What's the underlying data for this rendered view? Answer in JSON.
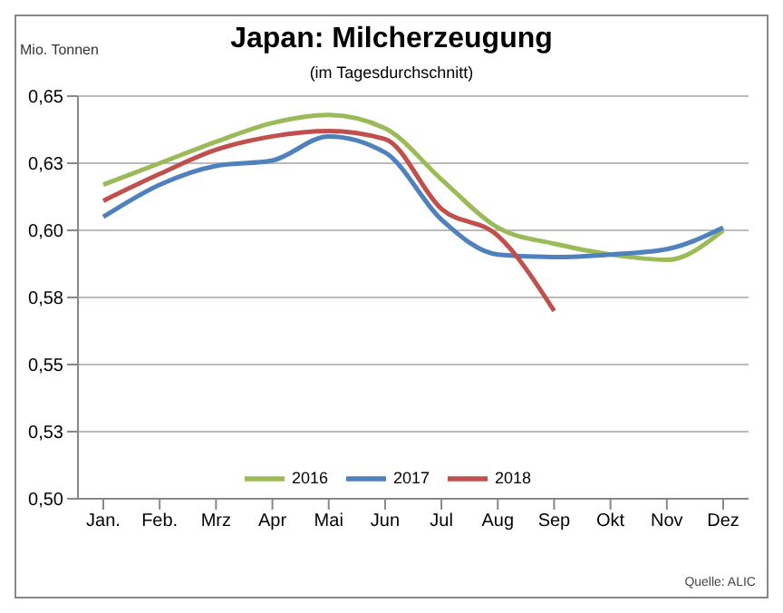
{
  "chart_data": {
    "type": "line",
    "title": "Japan: Milcherzeugung",
    "subtitle": "(im Tagesdurchschnitt)",
    "ylabel": "Mio. Tonnen",
    "categories": [
      "Jan.",
      "Feb.",
      "Mrz",
      "Apr",
      "Mai",
      "Jun",
      "Jul",
      "Aug",
      "Sep",
      "Okt",
      "Nov",
      "Dez"
    ],
    "series": [
      {
        "name": "2016",
        "color": "#9bbb59",
        "values": [
          0.617,
          0.625,
          0.633,
          0.64,
          0.643,
          0.638,
          0.619,
          0.601,
          0.595,
          0.591,
          0.589,
          0.6
        ]
      },
      {
        "name": "2017",
        "color": "#4f81bd",
        "values": [
          0.605,
          0.617,
          0.624,
          0.626,
          0.635,
          0.629,
          0.604,
          0.591,
          0.59,
          0.591,
          0.593,
          0.601
        ]
      },
      {
        "name": "2018",
        "color": "#c0504d",
        "values": [
          0.611,
          0.621,
          0.63,
          0.635,
          0.637,
          0.634,
          0.608,
          0.598,
          0.57,
          null,
          null,
          null
        ]
      }
    ],
    "ylim": [
      0.5,
      0.65
    ],
    "yticks": [
      {
        "value": 0.5,
        "label": "0,50"
      },
      {
        "value": 0.525,
        "label": "0,53"
      },
      {
        "value": 0.55,
        "label": "0,55"
      },
      {
        "value": 0.575,
        "label": "0,58"
      },
      {
        "value": 0.6,
        "label": "0,60"
      },
      {
        "value": 0.625,
        "label": "0,63"
      },
      {
        "value": 0.65,
        "label": "0,65"
      }
    ],
    "grid": "y",
    "legend": "bottom",
    "marker": "none",
    "line_style": "solid",
    "annotations": [
      "Quelle: ALIC"
    ]
  }
}
